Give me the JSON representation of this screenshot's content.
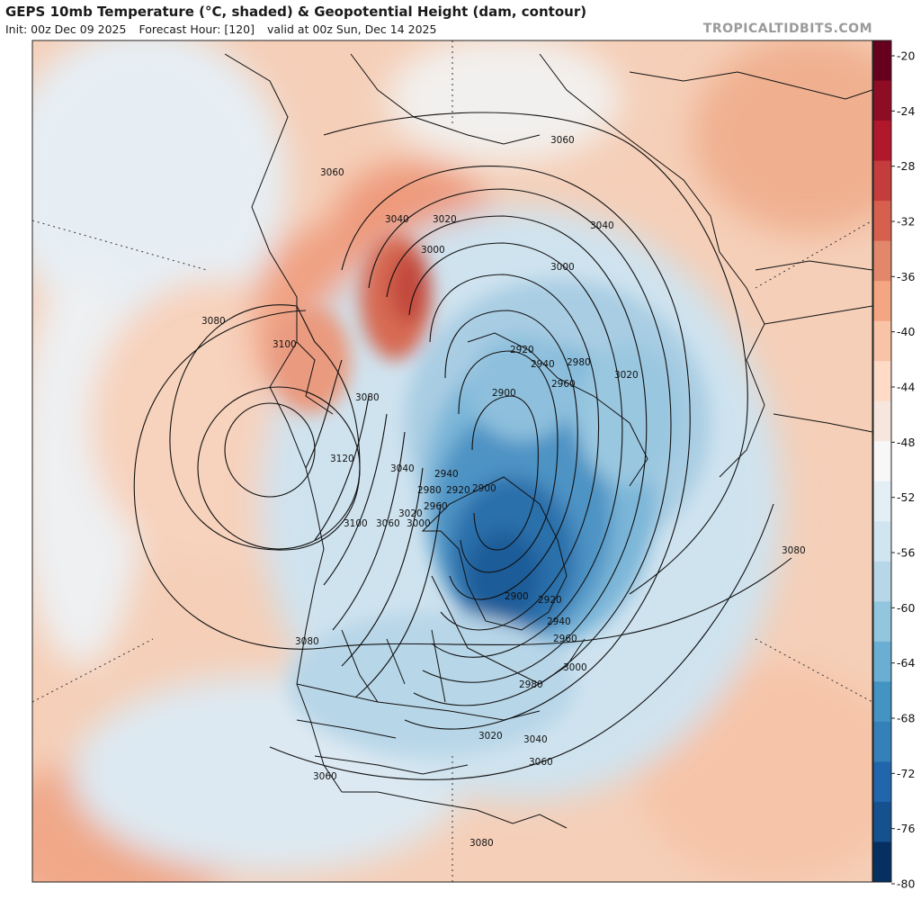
{
  "header": {
    "title": "GEPS 10mb Temperature (°C, shaded) & Geopotential Height (dam, contour)",
    "init": "Init: 00z Dec 09 2025",
    "forecast_hour": "Forecast Hour: [120]",
    "valid": "valid at 00z Sun, Dec 14 2025",
    "brand": "TROPICALTIDBITS.COM"
  },
  "colorbar": {
    "ticks": [
      "-20",
      "-24",
      "-28",
      "-32",
      "-36",
      "-40",
      "-44",
      "-48",
      "-52",
      "-56",
      "-60",
      "-64",
      "-68",
      "-72",
      "-76",
      "-80"
    ],
    "colors": [
      "#67001f",
      "#8e0d25",
      "#b2182b",
      "#c43c3c",
      "#d6604d",
      "#e3876b",
      "#f4a582",
      "#f8c3a7",
      "#fddbc7",
      "#f7e6de",
      "#f7f7f7",
      "#e3eef5",
      "#d1e5f0",
      "#b7d6e8",
      "#92c5de",
      "#6aaed3",
      "#4393c3",
      "#3480b9",
      "#2166ac",
      "#15508f",
      "#053061"
    ]
  },
  "contour_labels": {
    "c1": "3060",
    "c2": "3060",
    "c3": "3040",
    "c4": "3020",
    "c5": "3000",
    "c6": "3040",
    "c7": "3000",
    "c8": "3080",
    "c9": "3100",
    "c10": "2920",
    "c11": "2940",
    "c12": "2980",
    "c13": "2960",
    "c14": "3020",
    "c15": "2900",
    "c16": "3080",
    "c17": "3120",
    "c18": "3040",
    "c19": "2940",
    "c20": "2980",
    "c21": "2920",
    "c22": "2900",
    "c23": "2960",
    "c24": "3020",
    "c25": "3100",
    "c26": "3060",
    "c27": "3000",
    "c28": "3080",
    "c29": "2900",
    "c30": "2920",
    "c31": "2940",
    "c32": "2960",
    "c33": "3080",
    "c34": "3000",
    "c35": "2980",
    "c36": "3020",
    "c37": "3040",
    "c38": "3060",
    "c39": "3060",
    "c40": "3080"
  }
}
